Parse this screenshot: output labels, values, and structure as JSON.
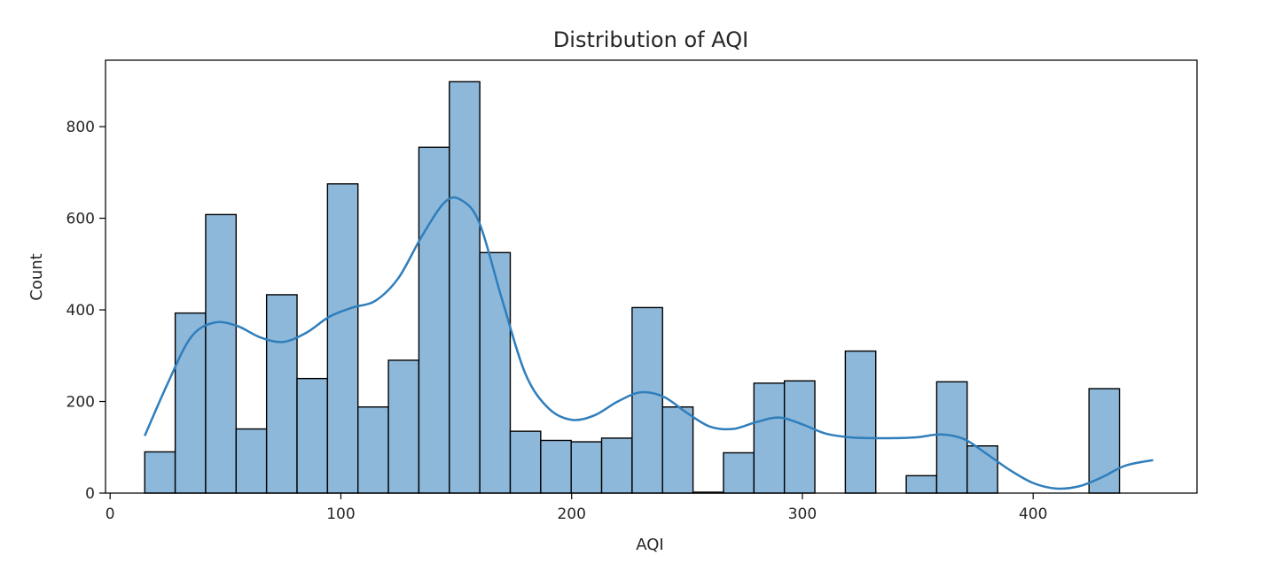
{
  "chart_data": {
    "type": "histogram",
    "title": "Distribution of AQI",
    "xlabel": "AQI",
    "ylabel": "Count",
    "xlim": [
      -2,
      471
    ],
    "ylim": [
      0,
      945
    ],
    "xticks": [
      0,
      100,
      200,
      300,
      400
    ],
    "yticks": [
      0,
      200,
      400,
      600,
      800
    ],
    "bin_start": 15,
    "bin_width": 13.2,
    "counts": [
      90,
      393,
      608,
      140,
      433,
      250,
      675,
      188,
      290,
      755,
      898,
      525,
      135,
      115,
      112,
      120,
      405,
      188,
      2,
      88,
      240,
      245,
      0,
      310,
      0,
      38,
      243,
      103,
      0,
      0,
      0,
      228
    ],
    "kde": {
      "name": "KDE",
      "x": [
        15,
        25,
        35,
        45,
        55,
        65,
        75,
        85,
        95,
        105,
        115,
        125,
        135,
        145,
        152,
        160,
        170,
        180,
        190,
        200,
        210,
        220,
        230,
        240,
        250,
        260,
        270,
        280,
        290,
        300,
        310,
        320,
        330,
        340,
        350,
        360,
        370,
        380,
        390,
        400,
        410,
        420,
        430,
        440,
        452
      ],
      "y": [
        125,
        240,
        340,
        372,
        365,
        340,
        330,
        350,
        385,
        405,
        420,
        470,
        560,
        635,
        640,
        590,
        420,
        260,
        185,
        160,
        170,
        200,
        220,
        210,
        175,
        145,
        140,
        155,
        165,
        150,
        130,
        122,
        120,
        120,
        122,
        128,
        118,
        85,
        50,
        22,
        10,
        15,
        35,
        60,
        72
      ]
    },
    "colors": {
      "bar_fill": "#8db8da",
      "bar_edge": "#000000",
      "kde_line": "#2f7ebc"
    }
  }
}
